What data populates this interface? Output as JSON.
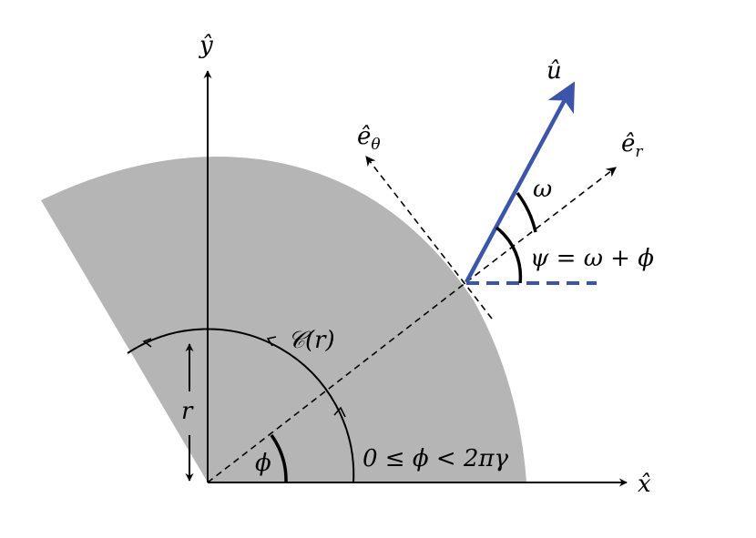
{
  "colors": {
    "sector_fill": "#b5b5b5",
    "u_vector": "#3a55aa",
    "ink": "#000000"
  },
  "labels": {
    "y_axis": "ŷ",
    "x_axis": "x̂",
    "u_vector": "û",
    "e_theta": "ê",
    "e_theta_sub": "θ",
    "e_r": "ê",
    "e_r_sub": "r",
    "omega": "ω",
    "psi_relation": "ψ = ω + ϕ",
    "contour": "𝒞(r)",
    "radius": "r",
    "phi": "ϕ",
    "phi_range": "0 ≤ ϕ < 2πγ"
  }
}
